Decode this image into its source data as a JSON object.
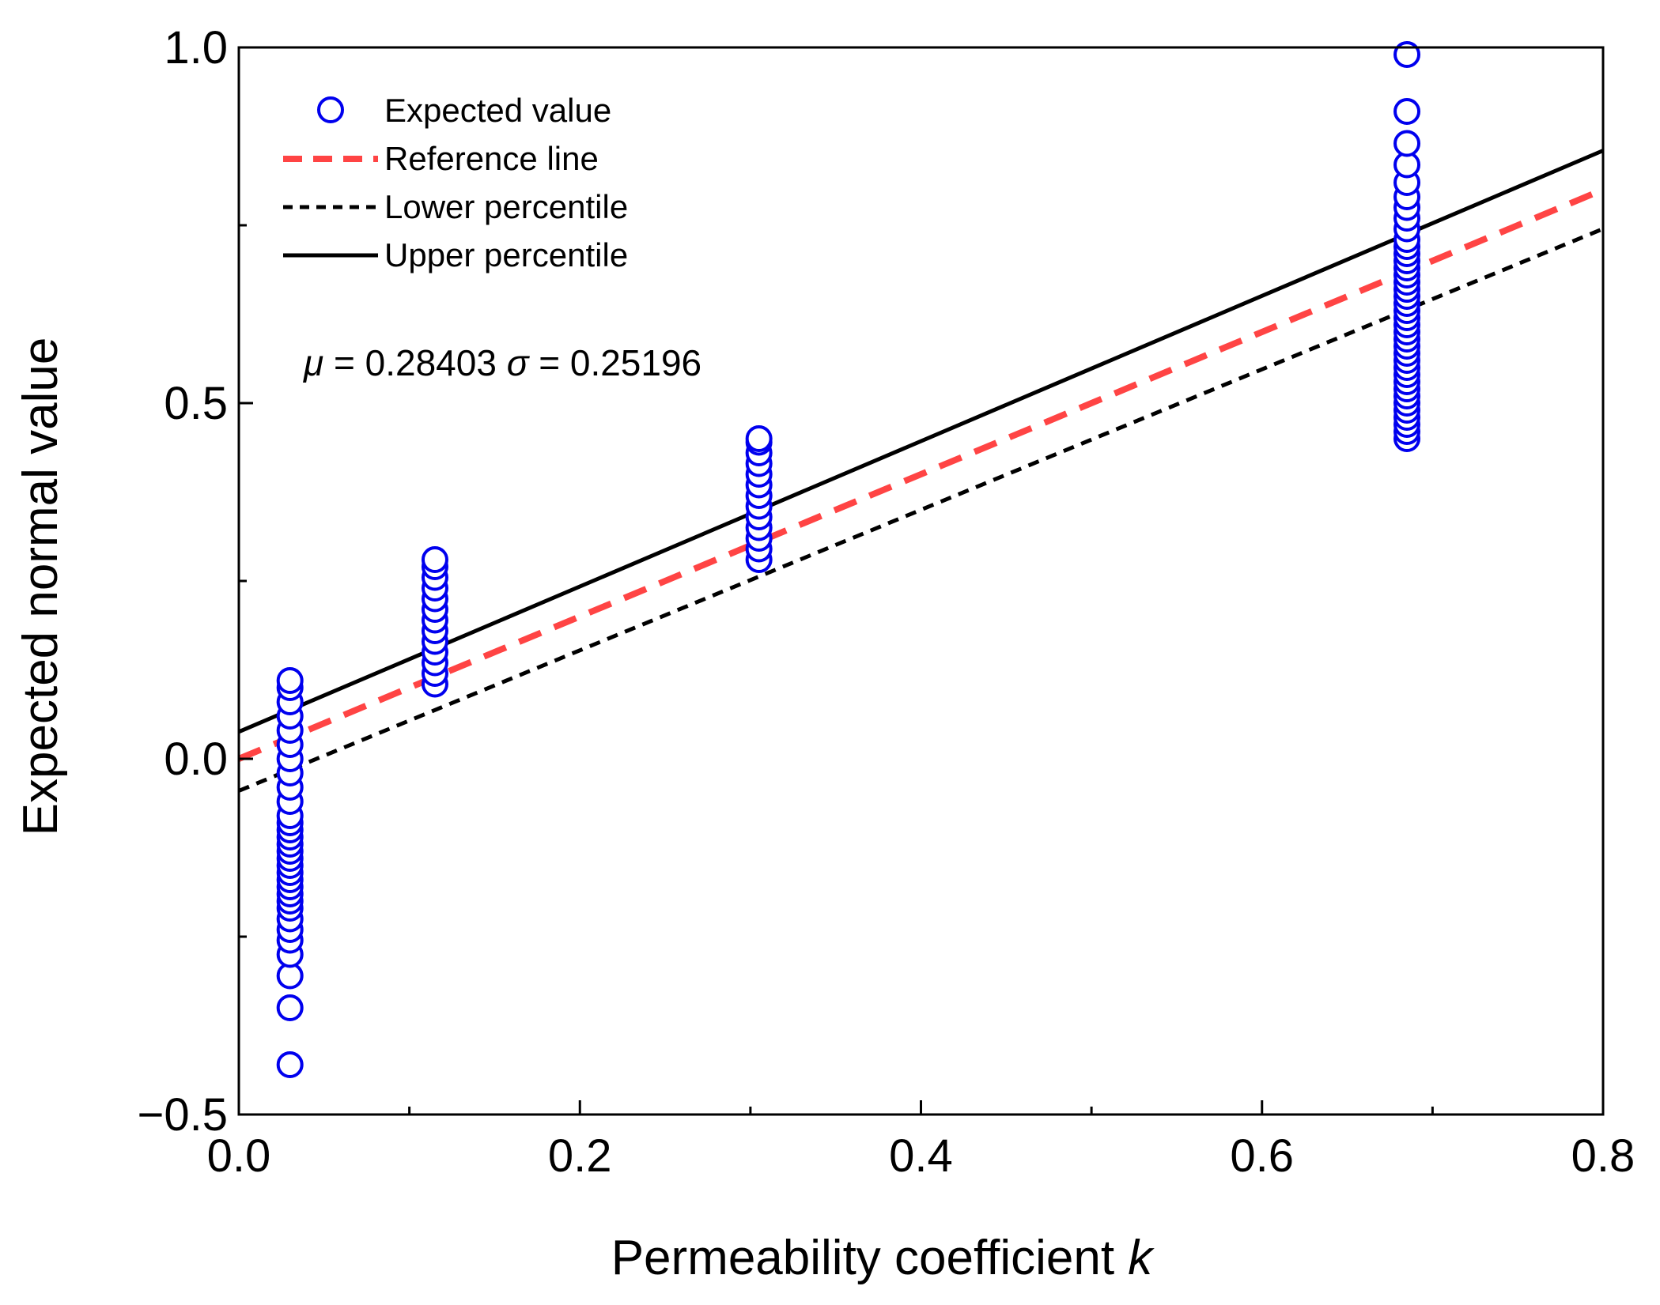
{
  "chart_data": {
    "type": "scatter",
    "xlabel": "Permeability coefficient ",
    "xlabel_italic": "k",
    "ylabel": "Expected normal value",
    "xlim": [
      0.0,
      0.8
    ],
    "ylim": [
      -0.5,
      1.0
    ],
    "xticks": [
      "0.0",
      "0.2",
      "0.4",
      "0.6",
      "0.8"
    ],
    "xtick_values": [
      0.0,
      0.2,
      0.4,
      0.6,
      0.8
    ],
    "yticks": [
      "−0.5",
      "0.0",
      "0.5",
      "1.0"
    ],
    "ytick_values": [
      -0.5,
      0.0,
      0.5,
      1.0
    ],
    "annotation": {
      "mu_symbol": "μ",
      "mu_text": " = 0.28403  ",
      "sigma_symbol": "σ",
      "sigma_text": " = 0.25196"
    },
    "legend": {
      "position": "top-left",
      "entries": [
        {
          "label": "Expected value"
        },
        {
          "label": "Reference line"
        },
        {
          "label": "Lower percentile"
        },
        {
          "label": "Upper percentile"
        }
      ]
    },
    "series": [
      {
        "name": "Expected value",
        "kind": "points",
        "color": "#0000ee",
        "groups": [
          {
            "x": 0.03,
            "y": [
              -0.43,
              -0.35,
              -0.305,
              -0.275,
              -0.255,
              -0.24,
              -0.225,
              -0.21,
              -0.2,
              -0.19,
              -0.18,
              -0.17,
              -0.16,
              -0.15,
              -0.14,
              -0.13,
              -0.12,
              -0.11,
              -0.1,
              -0.09,
              -0.08,
              -0.06,
              -0.04,
              -0.02,
              0.0,
              0.02,
              0.04,
              0.06,
              0.08,
              0.1,
              0.11
            ]
          },
          {
            "x": 0.115,
            "y": [
              0.105,
              0.12,
              0.135,
              0.15,
              0.165,
              0.18,
              0.195,
              0.21,
              0.225,
              0.24,
              0.255,
              0.27,
              0.28
            ]
          },
          {
            "x": 0.305,
            "y": [
              0.28,
              0.295,
              0.31,
              0.325,
              0.34,
              0.355,
              0.37,
              0.385,
              0.4,
              0.415,
              0.43,
              0.445,
              0.45
            ]
          },
          {
            "x": 0.685,
            "y": [
              0.45,
              0.46,
              0.47,
              0.48,
              0.49,
              0.5,
              0.51,
              0.52,
              0.53,
              0.54,
              0.55,
              0.56,
              0.57,
              0.58,
              0.59,
              0.6,
              0.61,
              0.62,
              0.63,
              0.64,
              0.65,
              0.66,
              0.67,
              0.68,
              0.69,
              0.7,
              0.71,
              0.72,
              0.73,
              0.745,
              0.76,
              0.775,
              0.79,
              0.81,
              0.835,
              0.865,
              0.91,
              0.99
            ]
          }
        ]
      },
      {
        "name": "Reference line",
        "kind": "line",
        "color": "#ff4444",
        "dash": "dashed",
        "points": [
          [
            0.0,
            0.0
          ],
          [
            0.8,
            0.8
          ]
        ]
      },
      {
        "name": "Lower percentile",
        "kind": "line",
        "color": "#000000",
        "dash": "dotted",
        "points": [
          [
            0.0,
            -0.045
          ],
          [
            0.8,
            0.745
          ]
        ]
      },
      {
        "name": "Upper percentile",
        "kind": "line",
        "color": "#000000",
        "dash": "solid",
        "points": [
          [
            0.0,
            0.038
          ],
          [
            0.8,
            0.855
          ]
        ]
      }
    ]
  }
}
